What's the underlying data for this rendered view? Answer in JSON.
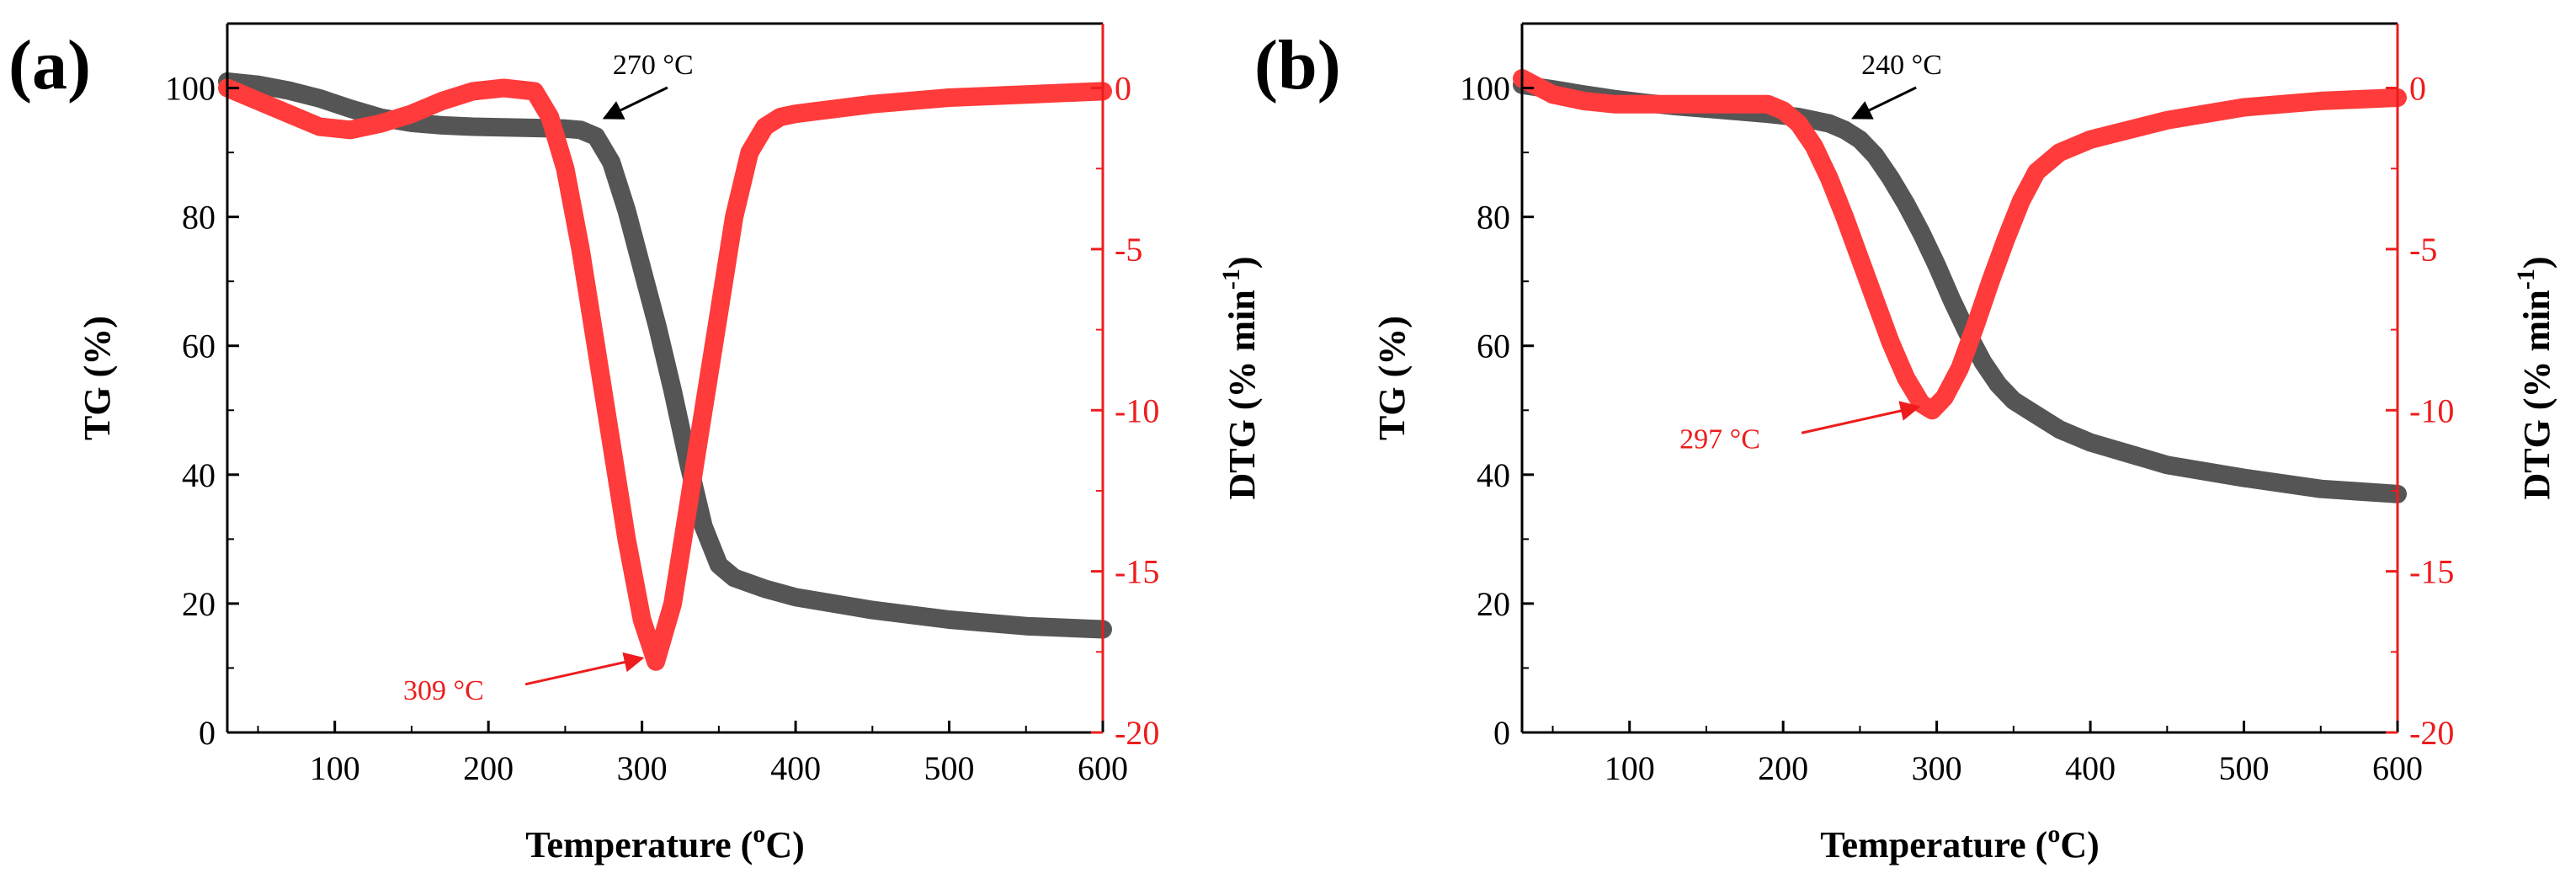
{
  "colors": {
    "tg": "#555555",
    "dtg": "#ff3b3b",
    "dtg_axis": "#ee1c1c",
    "annot_red": "#ee1c1c",
    "axis": "#000000"
  },
  "chart_data": [
    {
      "type": "line",
      "panel_label": "(a)",
      "xlabel": "Temperature (",
      "xlabel_sup": "o",
      "xlabel_end": "C)",
      "xlim": [
        30,
        600
      ],
      "xticks": [
        "100",
        "200",
        "300",
        "400",
        "500",
        "600"
      ],
      "ylabel_left": "TG (%)",
      "ylim_left": [
        0,
        110
      ],
      "yticks_left": [
        "0",
        "20",
        "40",
        "60",
        "80",
        "100"
      ],
      "ylabel_right": "DTG (% min",
      "ylabel_right_sup": "-1",
      "ylabel_right_end": ")",
      "ylim_right": [
        -20,
        2
      ],
      "yticks_right": [
        "0",
        "-5",
        "-10",
        "-15",
        "-20"
      ],
      "series": [
        {
          "name": "TG",
          "axis": "left",
          "x": [
            30,
            50,
            70,
            90,
            110,
            130,
            150,
            170,
            190,
            210,
            230,
            250,
            260,
            270,
            280,
            290,
            300,
            310,
            320,
            330,
            340,
            350,
            360,
            380,
            400,
            450,
            500,
            550,
            600
          ],
          "y": [
            101,
            100.5,
            99.6,
            98.4,
            96.8,
            95.4,
            94.6,
            94.2,
            94,
            93.9,
            93.8,
            93.7,
            93.5,
            92.5,
            88.5,
            81,
            72,
            63,
            53,
            42,
            32,
            26,
            24,
            22.3,
            21,
            19,
            17.5,
            16.5,
            16
          ]
        },
        {
          "name": "DTG",
          "axis": "right",
          "x": [
            30,
            50,
            70,
            90,
            110,
            130,
            150,
            170,
            190,
            210,
            230,
            240,
            250,
            260,
            270,
            280,
            290,
            300,
            309,
            320,
            330,
            340,
            350,
            360,
            370,
            380,
            390,
            400,
            450,
            500,
            550,
            600
          ],
          "y": [
            0,
            -0.4,
            -0.8,
            -1.2,
            -1.3,
            -1.1,
            -0.8,
            -0.4,
            -0.1,
            0,
            -0.1,
            -0.9,
            -2.5,
            -5,
            -8,
            -11,
            -14,
            -16.5,
            -17.8,
            -16,
            -13,
            -10,
            -7,
            -4,
            -2,
            -1.2,
            -0.9,
            -0.8,
            -0.5,
            -0.3,
            -0.2,
            -0.1
          ]
        }
      ],
      "annotations": [
        {
          "text": "270 °C",
          "color": "black",
          "x": 270,
          "y": 93.5,
          "axis": "left"
        },
        {
          "text": "309 °C",
          "color": "red",
          "x": 309,
          "y": -17.8,
          "axis": "right"
        }
      ]
    },
    {
      "type": "line",
      "panel_label": "(b)",
      "xlabel": "Temperature (",
      "xlabel_sup": "o",
      "xlabel_end": "C)",
      "xlim": [
        30,
        600
      ],
      "xticks": [
        "100",
        "200",
        "300",
        "400",
        "500",
        "600"
      ],
      "ylabel_left": "TG (%)",
      "ylim_left": [
        0,
        110
      ],
      "yticks_left": [
        "0",
        "20",
        "40",
        "60",
        "80",
        "100"
      ],
      "ylabel_right": "DTG (% min",
      "ylabel_right_sup": "-1",
      "ylabel_right_end": ")",
      "ylim_right": [
        -20,
        2
      ],
      "yticks_right": [
        "0",
        "-5",
        "-10",
        "-15",
        "-20"
      ],
      "series": [
        {
          "name": "TG",
          "axis": "left",
          "x": [
            30,
            50,
            70,
            90,
            110,
            130,
            150,
            170,
            190,
            210,
            230,
            240,
            250,
            260,
            270,
            280,
            290,
            300,
            310,
            320,
            330,
            340,
            350,
            360,
            380,
            400,
            450,
            500,
            550,
            600
          ],
          "y": [
            100.5,
            99.8,
            99,
            98.3,
            97.7,
            97.2,
            96.8,
            96.4,
            96,
            95.5,
            94.5,
            93.5,
            92,
            89.5,
            86,
            82,
            77.5,
            72.5,
            67,
            62,
            57.5,
            54,
            51.5,
            50,
            47,
            45,
            41.5,
            39.5,
            37.8,
            37
          ]
        },
        {
          "name": "DTG",
          "axis": "right",
          "x": [
            30,
            50,
            70,
            90,
            110,
            130,
            150,
            170,
            190,
            200,
            210,
            220,
            230,
            240,
            250,
            260,
            270,
            280,
            290,
            297,
            305,
            315,
            325,
            335,
            345,
            355,
            365,
            380,
            400,
            450,
            500,
            550,
            600
          ],
          "y": [
            0.3,
            -0.2,
            -0.4,
            -0.5,
            -0.5,
            -0.5,
            -0.5,
            -0.5,
            -0.5,
            -0.7,
            -1.1,
            -1.8,
            -2.8,
            -4,
            -5.3,
            -6.6,
            -7.9,
            -9,
            -9.8,
            -10,
            -9.6,
            -8.7,
            -7.4,
            -6,
            -4.7,
            -3.5,
            -2.6,
            -2,
            -1.6,
            -1,
            -0.6,
            -0.4,
            -0.3
          ]
        }
      ],
      "annotations": [
        {
          "text": "240 °C",
          "color": "black",
          "x": 240,
          "y": 93.5,
          "axis": "left"
        },
        {
          "text": "297 °C",
          "color": "red",
          "x": 297,
          "y": -10,
          "axis": "right"
        }
      ]
    }
  ]
}
